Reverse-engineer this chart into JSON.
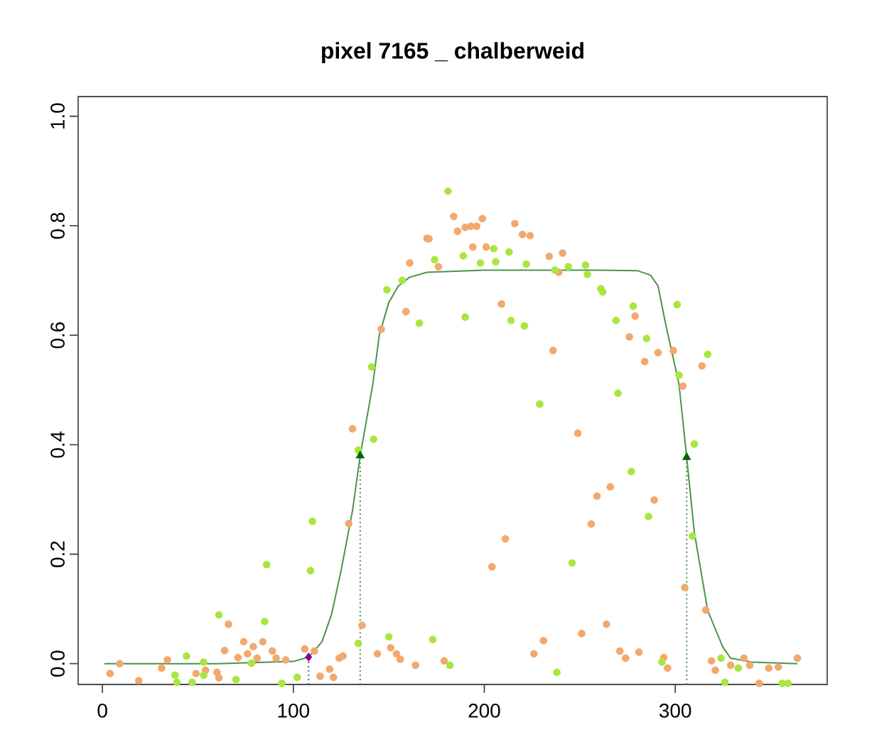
{
  "chart_data": {
    "type": "scatter",
    "title": "pixel 7165 _ chalberweid",
    "xlim": [
      -12.7,
      379.6
    ],
    "ylim": [
      -0.038,
      1.036
    ],
    "xticks": [
      0,
      100,
      200,
      300
    ],
    "yticks": [
      {
        "value": 0,
        "label": "0.0"
      },
      {
        "value": 0.2,
        "label": "0.2"
      },
      {
        "value": 0.4,
        "label": "0.4"
      },
      {
        "value": 0.6,
        "label": "0.6"
      },
      {
        "value": 0.8,
        "label": "0.8"
      },
      {
        "value": 1.0,
        "label": "1.0"
      }
    ],
    "marker": "circle",
    "series": [
      {
        "color": "#f2a86e",
        "x": [
          4,
          9,
          19,
          31,
          34,
          49,
          54,
          60,
          61,
          66,
          64,
          71,
          74,
          76,
          79,
          81,
          84,
          89,
          91,
          96,
          106,
          111,
          114,
          119,
          121,
          124,
          126,
          129,
          131,
          136,
          144,
          151,
          154,
          156,
          164,
          179,
          184,
          170,
          171,
          186,
          190,
          193,
          161,
          176,
          194,
          159,
          146,
          196,
          199,
          201,
          216,
          220,
          224,
          234,
          241,
          239,
          209,
          236,
          279,
          276,
          291,
          284,
          299,
          314,
          304,
          249,
          266,
          259,
          289,
          256,
          211,
          204,
          305,
          316,
          264,
          251,
          231,
          226,
          271,
          274,
          281,
          294,
          296,
          319,
          321,
          329,
          336,
          339,
          349,
          354,
          364,
          344
        ],
        "values": [
          -0.018,
          0.0,
          -0.031,
          -0.008,
          0.007,
          -0.018,
          -0.012,
          -0.016,
          -0.026,
          0.072,
          0.024,
          0.011,
          0.04,
          0.018,
          0.031,
          0.01,
          0.04,
          0.023,
          0.01,
          0.007,
          0.027,
          0.023,
          -0.023,
          -0.01,
          -0.025,
          0.01,
          0.014,
          0.256,
          0.429,
          0.07,
          0.018,
          0.029,
          0.018,
          0.008,
          -0.003,
          0.005,
          0.817,
          0.777,
          0.776,
          0.79,
          0.797,
          0.799,
          0.732,
          0.725,
          0.761,
          0.643,
          0.611,
          0.799,
          0.813,
          0.761,
          0.804,
          0.784,
          0.782,
          0.744,
          0.75,
          0.715,
          0.657,
          0.572,
          0.635,
          0.597,
          0.568,
          0.552,
          0.572,
          0.544,
          0.507,
          0.421,
          0.323,
          0.306,
          0.299,
          0.255,
          0.228,
          0.177,
          0.139,
          0.098,
          0.072,
          0.055,
          0.042,
          0.018,
          0.023,
          0.01,
          0.021,
          0.011,
          -0.008,
          0.005,
          -0.012,
          -0.003,
          0.01,
          -0.003,
          -0.008,
          -0.006,
          0.01,
          -0.036
        ]
      },
      {
        "color": "#a8e640",
        "x": [
          38,
          39,
          44,
          47,
          53,
          53,
          61,
          70,
          78,
          85,
          86,
          94,
          102,
          109,
          110,
          134,
          134,
          142,
          150,
          173,
          182,
          181,
          174,
          189,
          157,
          149,
          166,
          190,
          141,
          205,
          198,
          206,
          213,
          222,
          237,
          244,
          253,
          254,
          261,
          262,
          214,
          221,
          269,
          278,
          285,
          301,
          317,
          302,
          270,
          229,
          310,
          277,
          286,
          309,
          246,
          238,
          293,
          324,
          333,
          326,
          356,
          359
        ],
        "values": [
          -0.021,
          -0.034,
          0.014,
          -0.034,
          0.003,
          -0.021,
          0.089,
          -0.029,
          0.001,
          0.077,
          0.181,
          -0.036,
          -0.025,
          0.17,
          0.26,
          0.037,
          0.39,
          0.41,
          0.049,
          0.044,
          -0.003,
          0.863,
          0.738,
          0.745,
          0.7,
          0.683,
          0.622,
          0.633,
          0.542,
          0.758,
          0.732,
          0.734,
          0.752,
          0.73,
          0.719,
          0.725,
          0.728,
          0.711,
          0.685,
          0.679,
          0.627,
          0.617,
          0.627,
          0.653,
          0.594,
          0.656,
          0.565,
          0.527,
          0.494,
          0.474,
          0.401,
          0.351,
          0.269,
          0.233,
          0.184,
          -0.016,
          0.003,
          0.01,
          -0.008,
          -0.034,
          -0.036,
          -0.036
        ]
      },
      {
        "type": "line",
        "color": "#4a944a",
        "marker": "none",
        "line_style": "solid",
        "x": [
          1,
          60,
          100,
          108,
          115,
          120,
          125,
          131,
          135,
          141.6,
          145,
          150,
          155,
          161,
          170,
          200,
          260,
          280,
          287,
          291,
          295,
          302,
          306,
          310,
          317,
          325,
          329,
          340,
          364
        ],
        "values": [
          0.0,
          0.0,
          0.004,
          0.012,
          0.04,
          0.09,
          0.17,
          0.28,
          0.38,
          0.51,
          0.6,
          0.66,
          0.69,
          0.706,
          0.715,
          0.719,
          0.719,
          0.718,
          0.71,
          0.69,
          0.62,
          0.51,
          0.377,
          0.24,
          0.097,
          0.03,
          0.01,
          0.003,
          0.0
        ]
      },
      {
        "type": "line",
        "color": "#4a944a",
        "marker": "none",
        "line_style": "dotted",
        "x": [
          135,
          135
        ],
        "values": [
          -0.038,
          0.38
        ]
      },
      {
        "type": "line",
        "color": "#4a944a",
        "marker": "none",
        "line_style": "dotted",
        "x": [
          306,
          306
        ],
        "values": [
          -0.038,
          0.377
        ]
      },
      {
        "type": "line",
        "color": "#5a5aa0",
        "marker": "none",
        "line_style": "dotted",
        "x": [
          108,
          108
        ],
        "values": [
          -0.038,
          0.012
        ]
      },
      {
        "type": "scatter",
        "color": "#006400",
        "marker": "triangle",
        "x": [
          135,
          306
        ],
        "values": [
          0.38,
          0.377
        ]
      },
      {
        "type": "scatter",
        "color": "#8b008b",
        "marker": "diamond",
        "x": [
          108
        ],
        "values": [
          0.012
        ]
      }
    ]
  }
}
